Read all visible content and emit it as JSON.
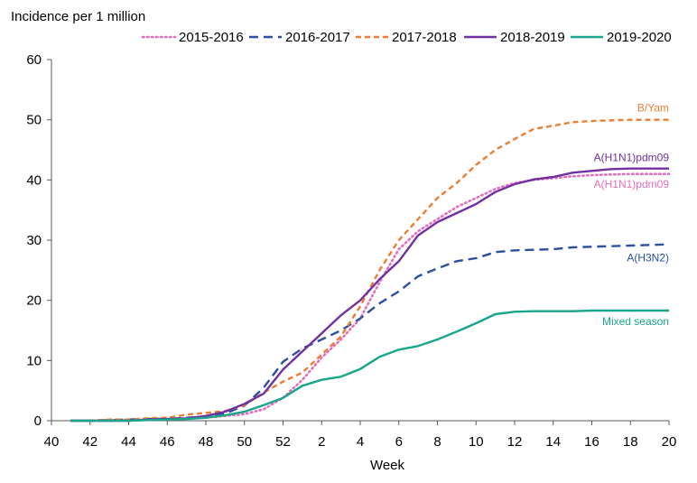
{
  "chart_data": {
    "type": "line",
    "title": "",
    "ylabel": "Incidence per 1 million",
    "xlabel": "Week",
    "ylim": [
      0,
      60
    ],
    "y_ticks": [
      0,
      10,
      20,
      30,
      40,
      50,
      60
    ],
    "x_tick_labels": [
      "40",
      "42",
      "44",
      "46",
      "48",
      "50",
      "52",
      "2",
      "4",
      "6",
      "8",
      "10",
      "12",
      "14",
      "16",
      "18",
      "20"
    ],
    "grid": false,
    "legend_position": "top",
    "x_weeks": [
      "41",
      "42",
      "43",
      "44",
      "45",
      "46",
      "47",
      "48",
      "49",
      "50",
      "51",
      "52",
      "1",
      "2",
      "3",
      "4",
      "5",
      "6",
      "7",
      "8",
      "9",
      "10",
      "11",
      "12",
      "13",
      "14",
      "15",
      "16",
      "17",
      "18",
      "19",
      "20"
    ],
    "series": [
      {
        "name": "2015-2016",
        "color": "#e16fbd",
        "dash": "dotted",
        "values": [
          0,
          0,
          0.1,
          0.1,
          0.2,
          0.2,
          0.3,
          0.5,
          0.8,
          1.1,
          1.9,
          3.8,
          6.8,
          10.5,
          13.5,
          17,
          23,
          28.5,
          31.5,
          33.5,
          35.5,
          37,
          38.5,
          39.5,
          40,
          40.3,
          40.6,
          40.8,
          40.9,
          41,
          41,
          41
        ]
      },
      {
        "name": "2016-2017",
        "color": "#2c4f9e",
        "dash": "dashed",
        "values": [
          0,
          0,
          0.1,
          0.2,
          0.3,
          0.3,
          0.5,
          0.7,
          1.2,
          2.5,
          5.5,
          9.8,
          12,
          13.5,
          15,
          17,
          19.5,
          21.5,
          24,
          25.3,
          26.5,
          27,
          28,
          28.3,
          28.4,
          28.5,
          28.8,
          28.9,
          29,
          29.1,
          29.2,
          29.3
        ]
      },
      {
        "name": "2017-2018",
        "color": "#ed7d31",
        "dash": "dashed-short",
        "values": [
          0,
          0,
          0.2,
          0.2,
          0.4,
          0.5,
          1,
          1.3,
          1.6,
          2.6,
          4.7,
          6.5,
          8,
          11,
          14,
          19,
          25,
          30,
          33.5,
          37,
          39.5,
          42.5,
          45,
          46.8,
          48.5,
          49,
          49.6,
          49.8,
          49.9,
          50,
          50,
          50
        ]
      },
      {
        "name": "2018-2019",
        "color": "#7030a0",
        "dash": "solid",
        "values": [
          0,
          0,
          0,
          0,
          0.2,
          0.3,
          0.4,
          0.8,
          1.5,
          2.8,
          4.5,
          8.5,
          11.5,
          14.5,
          17.5,
          20,
          23.5,
          26.5,
          30.8,
          33,
          34.5,
          36,
          38,
          39.3,
          40.1,
          40.5,
          41.2,
          41.5,
          41.8,
          41.9,
          41.9,
          41.9
        ]
      },
      {
        "name": "2019-2020",
        "color": "#18a58a",
        "dash": "solid",
        "values": [
          0,
          0,
          0,
          0,
          0.1,
          0.2,
          0.3,
          0.5,
          0.9,
          1.5,
          2.6,
          3.8,
          5.8,
          6.8,
          7.3,
          8.6,
          10.6,
          11.8,
          12.4,
          13.5,
          14.8,
          16.2,
          17.7,
          18.1,
          18.2,
          18.2,
          18.2,
          18.3,
          18.3,
          18.3,
          18.3,
          18.3
        ]
      }
    ],
    "annotations": [
      {
        "text": "B/Yam",
        "color": "#ed7d31",
        "x_week": "20",
        "y": 52
      },
      {
        "text": "A(H1N1)pdm09",
        "color": "#7030a0",
        "x_week": "20",
        "y": 43.7
      },
      {
        "text": "A(H1N1)pdm09",
        "color": "#e16fbd",
        "x_week": "20",
        "y": 39.3
      },
      {
        "text": "A(H3N2)",
        "color": "#2c4f9e",
        "x_week": "20",
        "y": 27.1
      },
      {
        "text": "Mixed season",
        "color": "#18a58a",
        "x_week": "20",
        "y": 16.5
      }
    ]
  }
}
